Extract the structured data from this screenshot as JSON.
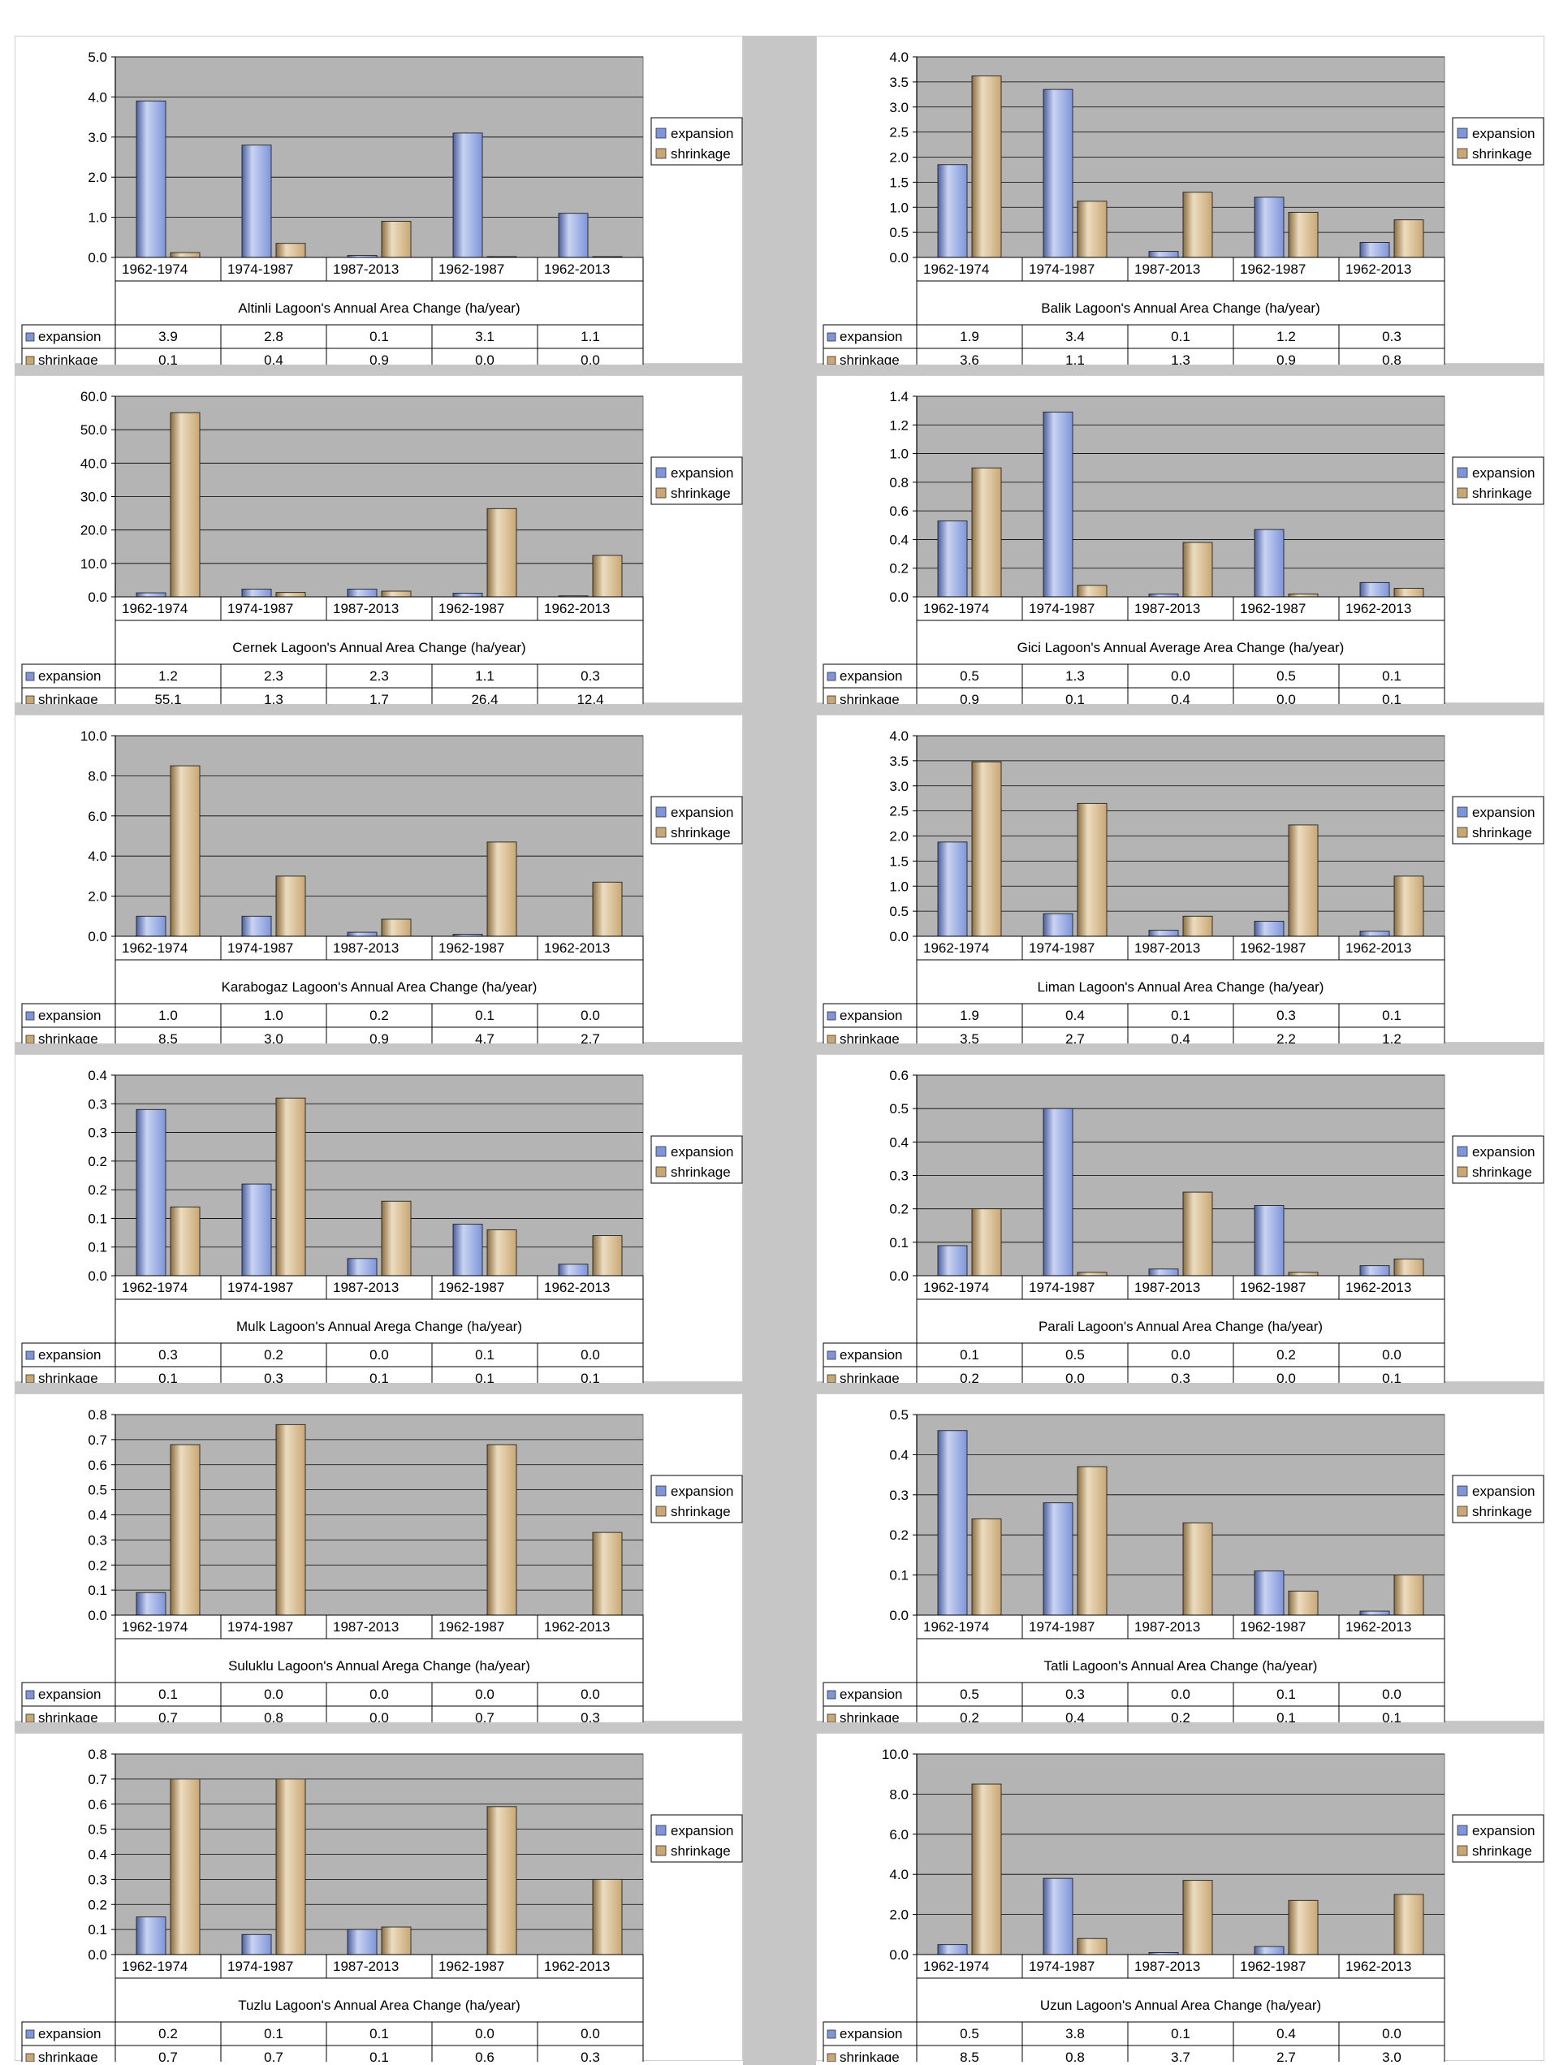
{
  "chart_data": [
    {
      "type": "bar",
      "title": "Altinli Lagoon's Annual Area Change (ha/year)",
      "categories": [
        "1962-1974",
        "1974-1987",
        "1987-2013",
        "1962-1987",
        "1962-2013"
      ],
      "ylim": [
        0,
        5
      ],
      "y_ticks": [
        "0.0",
        "1.0",
        "2.0",
        "3.0",
        "4.0",
        "5.0"
      ],
      "legend_position": "right",
      "series": [
        {
          "name": "expansion",
          "values": [
            3.9,
            2.8,
            0.05,
            3.1,
            1.1
          ],
          "labels": [
            "3.9",
            "2.8",
            "0.1",
            "3.1",
            "1.1"
          ]
        },
        {
          "name": "shrinkage",
          "values": [
            0.12,
            0.35,
            0.9,
            0.02,
            0.02
          ],
          "labels": [
            "0.1",
            "0.4",
            "0.9",
            "0.0",
            "0.0"
          ]
        }
      ]
    },
    {
      "type": "bar",
      "title": "Balik Lagoon's Annual Area Change (ha/year)",
      "categories": [
        "1962-1974",
        "1974-1987",
        "1987-2013",
        "1962-1987",
        "1962-2013"
      ],
      "ylim": [
        0,
        4
      ],
      "y_ticks": [
        "0.0",
        "0.5",
        "1.0",
        "1.5",
        "2.0",
        "2.5",
        "3.0",
        "3.5",
        "4.0"
      ],
      "legend_position": "right",
      "series": [
        {
          "name": "expansion",
          "values": [
            1.85,
            3.35,
            0.12,
            1.2,
            0.3
          ],
          "labels": [
            "1.9",
            "3.4",
            "0.1",
            "1.2",
            "0.3"
          ]
        },
        {
          "name": "shrinkage",
          "values": [
            3.62,
            1.12,
            1.3,
            0.9,
            0.75
          ],
          "labels": [
            "3.6",
            "1.1",
            "1.3",
            "0.9",
            "0.8"
          ]
        }
      ]
    },
    {
      "type": "bar",
      "title": "Cernek Lagoon's Annual Area Change (ha/year)",
      "categories": [
        "1962-1974",
        "1974-1987",
        "1987-2013",
        "1962-1987",
        "1962-2013"
      ],
      "ylim": [
        0,
        60
      ],
      "y_ticks": [
        "0.0",
        "10.0",
        "20.0",
        "30.0",
        "40.0",
        "50.0",
        "60.0"
      ],
      "legend_position": "right",
      "series": [
        {
          "name": "expansion",
          "values": [
            1.2,
            2.3,
            2.3,
            1.1,
            0.3
          ],
          "labels": [
            "1.2",
            "2.3",
            "2.3",
            "1.1",
            "0.3"
          ]
        },
        {
          "name": "shrinkage",
          "values": [
            55.1,
            1.3,
            1.7,
            26.4,
            12.4
          ],
          "labels": [
            "55.1",
            "1.3",
            "1.7",
            "26.4",
            "12.4"
          ]
        }
      ]
    },
    {
      "type": "bar",
      "title": "Gici Lagoon's Annual Average Area Change (ha/year)",
      "categories": [
        "1962-1974",
        "1974-1987",
        "1987-2013",
        "1962-1987",
        "1962-2013"
      ],
      "ylim": [
        0,
        1.4
      ],
      "y_ticks": [
        "0.0",
        "0.2",
        "0.4",
        "0.6",
        "0.8",
        "1.0",
        "1.2",
        "1.4"
      ],
      "legend_position": "right",
      "series": [
        {
          "name": "expansion",
          "values": [
            0.53,
            1.29,
            0.02,
            0.47,
            0.1
          ],
          "labels": [
            "0.5",
            "1.3",
            "0.0",
            "0.5",
            "0.1"
          ]
        },
        {
          "name": "shrinkage",
          "values": [
            0.9,
            0.08,
            0.38,
            0.02,
            0.06
          ],
          "labels": [
            "0.9",
            "0.1",
            "0.4",
            "0.0",
            "0.1"
          ]
        }
      ]
    },
    {
      "type": "bar",
      "title": "Karabogaz Lagoon's Annual Area Change (ha/year)",
      "categories": [
        "1962-1974",
        "1974-1987",
        "1987-2013",
        "1962-1987",
        "1962-2013"
      ],
      "ylim": [
        0,
        10
      ],
      "y_ticks": [
        "0.0",
        "2.0",
        "4.0",
        "6.0",
        "8.0",
        "10.0"
      ],
      "legend_position": "right",
      "series": [
        {
          "name": "expansion",
          "values": [
            1.0,
            1.0,
            0.2,
            0.1,
            0.0
          ],
          "labels": [
            "1.0",
            "1.0",
            "0.2",
            "0.1",
            "0.0"
          ]
        },
        {
          "name": "shrinkage",
          "values": [
            8.5,
            3.0,
            0.85,
            4.7,
            2.7
          ],
          "labels": [
            "8.5",
            "3.0",
            "0.9",
            "4.7",
            "2.7"
          ]
        }
      ]
    },
    {
      "type": "bar",
      "title": "Liman Lagoon's Annual Area Change (ha/year)",
      "categories": [
        "1962-1974",
        "1974-1987",
        "1987-2013",
        "1962-1987",
        "1962-2013"
      ],
      "ylim": [
        0,
        4
      ],
      "y_ticks": [
        "0.0",
        "0.5",
        "1.0",
        "1.5",
        "2.0",
        "2.5",
        "3.0",
        "3.5",
        "4.0"
      ],
      "legend_position": "right",
      "series": [
        {
          "name": "expansion",
          "values": [
            1.88,
            0.45,
            0.12,
            0.3,
            0.1
          ],
          "labels": [
            "1.9",
            "0.4",
            "0.1",
            "0.3",
            "0.1"
          ]
        },
        {
          "name": "shrinkage",
          "values": [
            3.48,
            2.65,
            0.4,
            2.22,
            1.2
          ],
          "labels": [
            "3.5",
            "2.7",
            "0.4",
            "2.2",
            "1.2"
          ]
        }
      ]
    },
    {
      "type": "bar",
      "title": "Mulk Lagoon's Annual Arega Change (ha/year)",
      "categories": [
        "1962-1974",
        "1974-1987",
        "1987-2013",
        "1962-1987",
        "1962-2013"
      ],
      "ylim": [
        0,
        0.35
      ],
      "y_ticks": [
        "0.0",
        "0.1",
        "0.1",
        "0.2",
        "0.2",
        "0.3",
        "0.3",
        "0.4"
      ],
      "legend_position": "right",
      "series": [
        {
          "name": "expansion",
          "values": [
            0.29,
            0.16,
            0.03,
            0.09,
            0.02
          ],
          "labels": [
            "0.3",
            "0.2",
            "0.0",
            "0.1",
            "0.0"
          ]
        },
        {
          "name": "shrinkage",
          "values": [
            0.12,
            0.31,
            0.13,
            0.08,
            0.07
          ],
          "labels": [
            "0.1",
            "0.3",
            "0.1",
            "0.1",
            "0.1"
          ]
        }
      ]
    },
    {
      "type": "bar",
      "title": "Parali Lagoon's Annual Area Change (ha/year)",
      "categories": [
        "1962-1974",
        "1974-1987",
        "1987-2013",
        "1962-1987",
        "1962-2013"
      ],
      "ylim": [
        0,
        0.6
      ],
      "y_ticks": [
        "0.0",
        "0.1",
        "0.2",
        "0.3",
        "0.4",
        "0.5",
        "0.6"
      ],
      "legend_position": "right",
      "series": [
        {
          "name": "expansion",
          "values": [
            0.09,
            0.5,
            0.02,
            0.21,
            0.03
          ],
          "labels": [
            "0.1",
            "0.5",
            "0.0",
            "0.2",
            "0.0"
          ]
        },
        {
          "name": "shrinkage",
          "values": [
            0.2,
            0.01,
            0.25,
            0.01,
            0.05
          ],
          "labels": [
            "0.2",
            "0.0",
            "0.3",
            "0.0",
            "0.1"
          ]
        }
      ]
    },
    {
      "type": "bar",
      "title": "Suluklu Lagoon's Annual Arega Change (ha/year)",
      "categories": [
        "1962-1974",
        "1974-1987",
        "1987-2013",
        "1962-1987",
        "1962-2013"
      ],
      "ylim": [
        0,
        0.8
      ],
      "y_ticks": [
        "0.0",
        "0.1",
        "0.2",
        "0.3",
        "0.4",
        "0.5",
        "0.6",
        "0.7",
        "0.8"
      ],
      "legend_position": "right",
      "series": [
        {
          "name": "expansion",
          "values": [
            0.09,
            0.0,
            0.0,
            0.0,
            0.0
          ],
          "labels": [
            "0.1",
            "0.0",
            "0.0",
            "0.0",
            "0.0"
          ]
        },
        {
          "name": "shrinkage",
          "values": [
            0.68,
            0.76,
            0.0,
            0.68,
            0.33
          ],
          "labels": [
            "0.7",
            "0.8",
            "0.0",
            "0.7",
            "0.3"
          ]
        }
      ]
    },
    {
      "type": "bar",
      "title": "Tatli Lagoon's Annual Area Change (ha/year)",
      "categories": [
        "1962-1974",
        "1974-1987",
        "1987-2013",
        "1962-1987",
        "1962-2013"
      ],
      "ylim": [
        0,
        0.5
      ],
      "y_ticks": [
        "0.0",
        "0.1",
        "0.2",
        "0.3",
        "0.4",
        "0.5"
      ],
      "legend_position": "right",
      "series": [
        {
          "name": "expansion",
          "values": [
            0.46,
            0.28,
            0.0,
            0.11,
            0.01
          ],
          "labels": [
            "0.5",
            "0.3",
            "0.0",
            "0.1",
            "0.0"
          ]
        },
        {
          "name": "shrinkage",
          "values": [
            0.24,
            0.37,
            0.23,
            0.06,
            0.1
          ],
          "labels": [
            "0.2",
            "0.4",
            "0.2",
            "0.1",
            "0.1"
          ]
        }
      ]
    },
    {
      "type": "bar",
      "title": "Tuzlu Lagoon's Annual Area Change (ha/year)",
      "categories": [
        "1962-1974",
        "1974-1987",
        "1987-2013",
        "1962-1987",
        "1962-2013"
      ],
      "ylim": [
        0,
        0.8
      ],
      "y_ticks": [
        "0.0",
        "0.1",
        "0.2",
        "0.3",
        "0.4",
        "0.5",
        "0.6",
        "0.7",
        "0.8"
      ],
      "legend_position": "right",
      "series": [
        {
          "name": "expansion",
          "values": [
            0.15,
            0.08,
            0.1,
            0.0,
            0.0
          ],
          "labels": [
            "0.2",
            "0.1",
            "0.1",
            "0.0",
            "0.0"
          ]
        },
        {
          "name": "shrinkage",
          "values": [
            0.7,
            0.7,
            0.11,
            0.59,
            0.3
          ],
          "labels": [
            "0.7",
            "0.7",
            "0.1",
            "0.6",
            "0.3"
          ]
        }
      ]
    },
    {
      "type": "bar",
      "title": "Uzun Lagoon's Annual Area Change (ha/year)",
      "categories": [
        "1962-1974",
        "1974-1987",
        "1987-2013",
        "1962-1987",
        "1962-2013"
      ],
      "ylim": [
        0,
        10
      ],
      "y_ticks": [
        "0.0",
        "2.0",
        "4.0",
        "6.0",
        "8.0",
        "10.0"
      ],
      "legend_position": "right",
      "series": [
        {
          "name": "expansion",
          "values": [
            0.5,
            3.8,
            0.1,
            0.4,
            0.0
          ],
          "labels": [
            "0.5",
            "3.8",
            "0.1",
            "0.4",
            "0.0"
          ]
        },
        {
          "name": "shrinkage",
          "values": [
            8.5,
            0.8,
            3.7,
            2.7,
            3.0
          ],
          "labels": [
            "8.5",
            "0.8",
            "3.7",
            "2.7",
            "3.0"
          ]
        }
      ]
    }
  ],
  "colors": {
    "expansion": "#7f95d9",
    "expansion_light": "#c9d3f2",
    "expansion_dark": "#4a5f9e",
    "shrinkage": "#c9a775",
    "shrinkage_light": "#ecdcbf",
    "shrinkage_dark": "#8c6d40",
    "plot_bg": "#b4b4b4",
    "gridline": "#000000"
  }
}
